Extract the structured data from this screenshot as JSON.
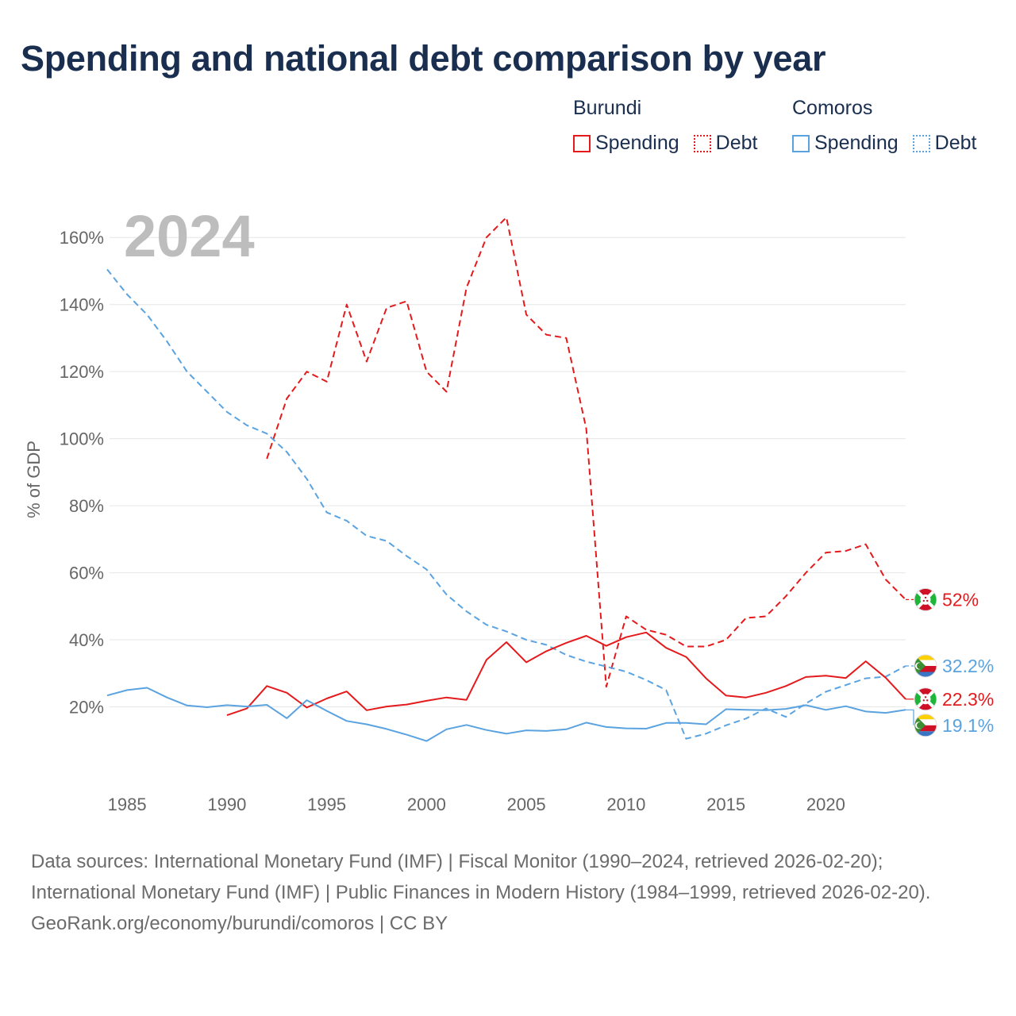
{
  "title": "Spending and national debt comparison by year",
  "legend": {
    "groups": [
      {
        "country": "Burundi",
        "color": "#e41a1c",
        "items": [
          {
            "label": "Spending",
            "style": "solid"
          },
          {
            "label": "Debt",
            "style": "dotted"
          }
        ]
      },
      {
        "country": "Comoros",
        "color": "#5aa3e0",
        "items": [
          {
            "label": "Spending",
            "style": "solid"
          },
          {
            "label": "Debt",
            "style": "dotted"
          }
        ]
      }
    ]
  },
  "footer": {
    "sources": "Data sources: International Monetary Fund (IMF) | Fiscal Monitor (1990–2024, retrieved 2026-02-20); International Monetary Fund (IMF) | Public Finances in Modern History (1984–1999, retrieved 2026-02-20).",
    "credit": "GeoRank.org/economy/burundi/comoros | CC BY"
  },
  "colors": {
    "burundi": "#e41a1c",
    "comoros": "#5aa3e0",
    "grid": "#e6e6e6",
    "axis_text": "#666666",
    "year_watermark": "#bdbdbd"
  },
  "chart_data": {
    "type": "line",
    "year_label": "2024",
    "ylabel": "% of GDP",
    "xlim": [
      1984,
      2024
    ],
    "ylim": [
      0,
      170
    ],
    "x_ticks": [
      1985,
      1990,
      1995,
      2000,
      2005,
      2010,
      2015,
      2020
    ],
    "x_tick_labels": [
      "1985",
      "1990",
      "1995",
      "2000",
      "2005",
      "2010",
      "2015",
      "2020"
    ],
    "y_ticks": [
      20,
      40,
      60,
      80,
      100,
      120,
      140,
      160
    ],
    "y_tick_labels": [
      "20%",
      "40%",
      "60%",
      "80%",
      "100%",
      "120%",
      "140%",
      "160%"
    ],
    "series": [
      {
        "name": "Burundi Debt",
        "country": "burundi",
        "kind": "debt",
        "color": "#e41a1c",
        "dashed": true,
        "x": [
          1992,
          1993,
          1994,
          1995,
          1996,
          1997,
          1998,
          1999,
          2000,
          2001,
          2002,
          2003,
          2004,
          2005,
          2006,
          2007,
          2008,
          2009,
          2010,
          2011,
          2012,
          2013,
          2014,
          2015,
          2016,
          2017,
          2018,
          2019,
          2020,
          2021,
          2022,
          2023,
          2024
        ],
        "values": [
          94,
          112,
          120,
          117,
          140,
          123,
          139,
          141,
          120,
          114,
          145,
          160,
          166,
          137,
          131,
          130,
          103,
          26,
          47,
          43,
          41.5,
          38,
          38,
          40,
          46.5,
          47,
          53,
          60,
          66,
          66.5,
          68.5,
          58,
          52
        ],
        "end_label": "52%"
      },
      {
        "name": "Comoros Debt",
        "country": "comoros",
        "kind": "debt",
        "color": "#5aa3e0",
        "dashed": true,
        "x": [
          1984,
          1985,
          1986,
          1987,
          1988,
          1989,
          1990,
          1991,
          1992,
          1993,
          1994,
          1995,
          1996,
          1997,
          1998,
          1999,
          2000,
          2001,
          2002,
          2003,
          2004,
          2005,
          2006,
          2007,
          2008,
          2009,
          2010,
          2011,
          2012,
          2013,
          2014,
          2015,
          2016,
          2017,
          2018,
          2019,
          2020,
          2021,
          2022,
          2023,
          2024
        ],
        "values": [
          150.5,
          143,
          137,
          129,
          120,
          114,
          108,
          104,
          101.5,
          96,
          88,
          78,
          75.5,
          71,
          69.5,
          65,
          61,
          53.5,
          48.5,
          44.5,
          42.5,
          40,
          38.5,
          35.5,
          33.5,
          32,
          30.5,
          28,
          25,
          10.5,
          12,
          14.5,
          16.5,
          19.5,
          17,
          21,
          24.5,
          26.5,
          28.5,
          29,
          32.2
        ],
        "end_label": "32.2%"
      },
      {
        "name": "Burundi Spending",
        "country": "burundi",
        "kind": "spending",
        "color": "#e41a1c",
        "dashed": false,
        "x": [
          1990,
          1991,
          1992,
          1993,
          1994,
          1995,
          1996,
          1997,
          1998,
          1999,
          2000,
          2001,
          2002,
          2003,
          2004,
          2005,
          2006,
          2007,
          2008,
          2009,
          2010,
          2011,
          2012,
          2013,
          2014,
          2015,
          2016,
          2017,
          2018,
          2019,
          2020,
          2021,
          2022,
          2023,
          2024
        ],
        "values": [
          17.5,
          19.5,
          26.2,
          24.2,
          19.8,
          22.5,
          24.6,
          19,
          20.1,
          20.7,
          21.8,
          22.8,
          22.1,
          34,
          39.3,
          33.3,
          36.6,
          39.1,
          41.2,
          38.2,
          40.8,
          42.2,
          37.6,
          34.9,
          28.5,
          23.4,
          22.8,
          24.2,
          26.2,
          28.9,
          29.3,
          28.6,
          33.6,
          28.7,
          22.3
        ],
        "end_label": "22.3%"
      },
      {
        "name": "Comoros Spending",
        "country": "comoros",
        "kind": "spending",
        "color": "#5aa3e0",
        "dashed": false,
        "x": [
          1984,
          1985,
          1986,
          1987,
          1988,
          1989,
          1990,
          1991,
          1992,
          1993,
          1994,
          1995,
          1996,
          1997,
          1998,
          1999,
          2000,
          2001,
          2002,
          2003,
          2004,
          2005,
          2006,
          2007,
          2008,
          2009,
          2010,
          2011,
          2012,
          2013,
          2014,
          2015,
          2016,
          2017,
          2018,
          2019,
          2020,
          2021,
          2022,
          2023,
          2024
        ],
        "values": [
          23.4,
          25,
          25.7,
          22.8,
          20.4,
          19.9,
          20.5,
          20.1,
          20.6,
          16.6,
          22,
          18.8,
          15.8,
          14.8,
          13.4,
          11.7,
          9.8,
          13.3,
          14.6,
          13.1,
          12,
          13,
          12.8,
          13.3,
          15.3,
          14,
          13.6,
          13.5,
          15.2,
          15.2,
          14.8,
          19.3,
          19.1,
          19,
          19.4,
          20.5,
          19.1,
          20.2,
          18.6,
          18.2,
          19.1
        ],
        "end_label": "19.1%"
      }
    ]
  }
}
